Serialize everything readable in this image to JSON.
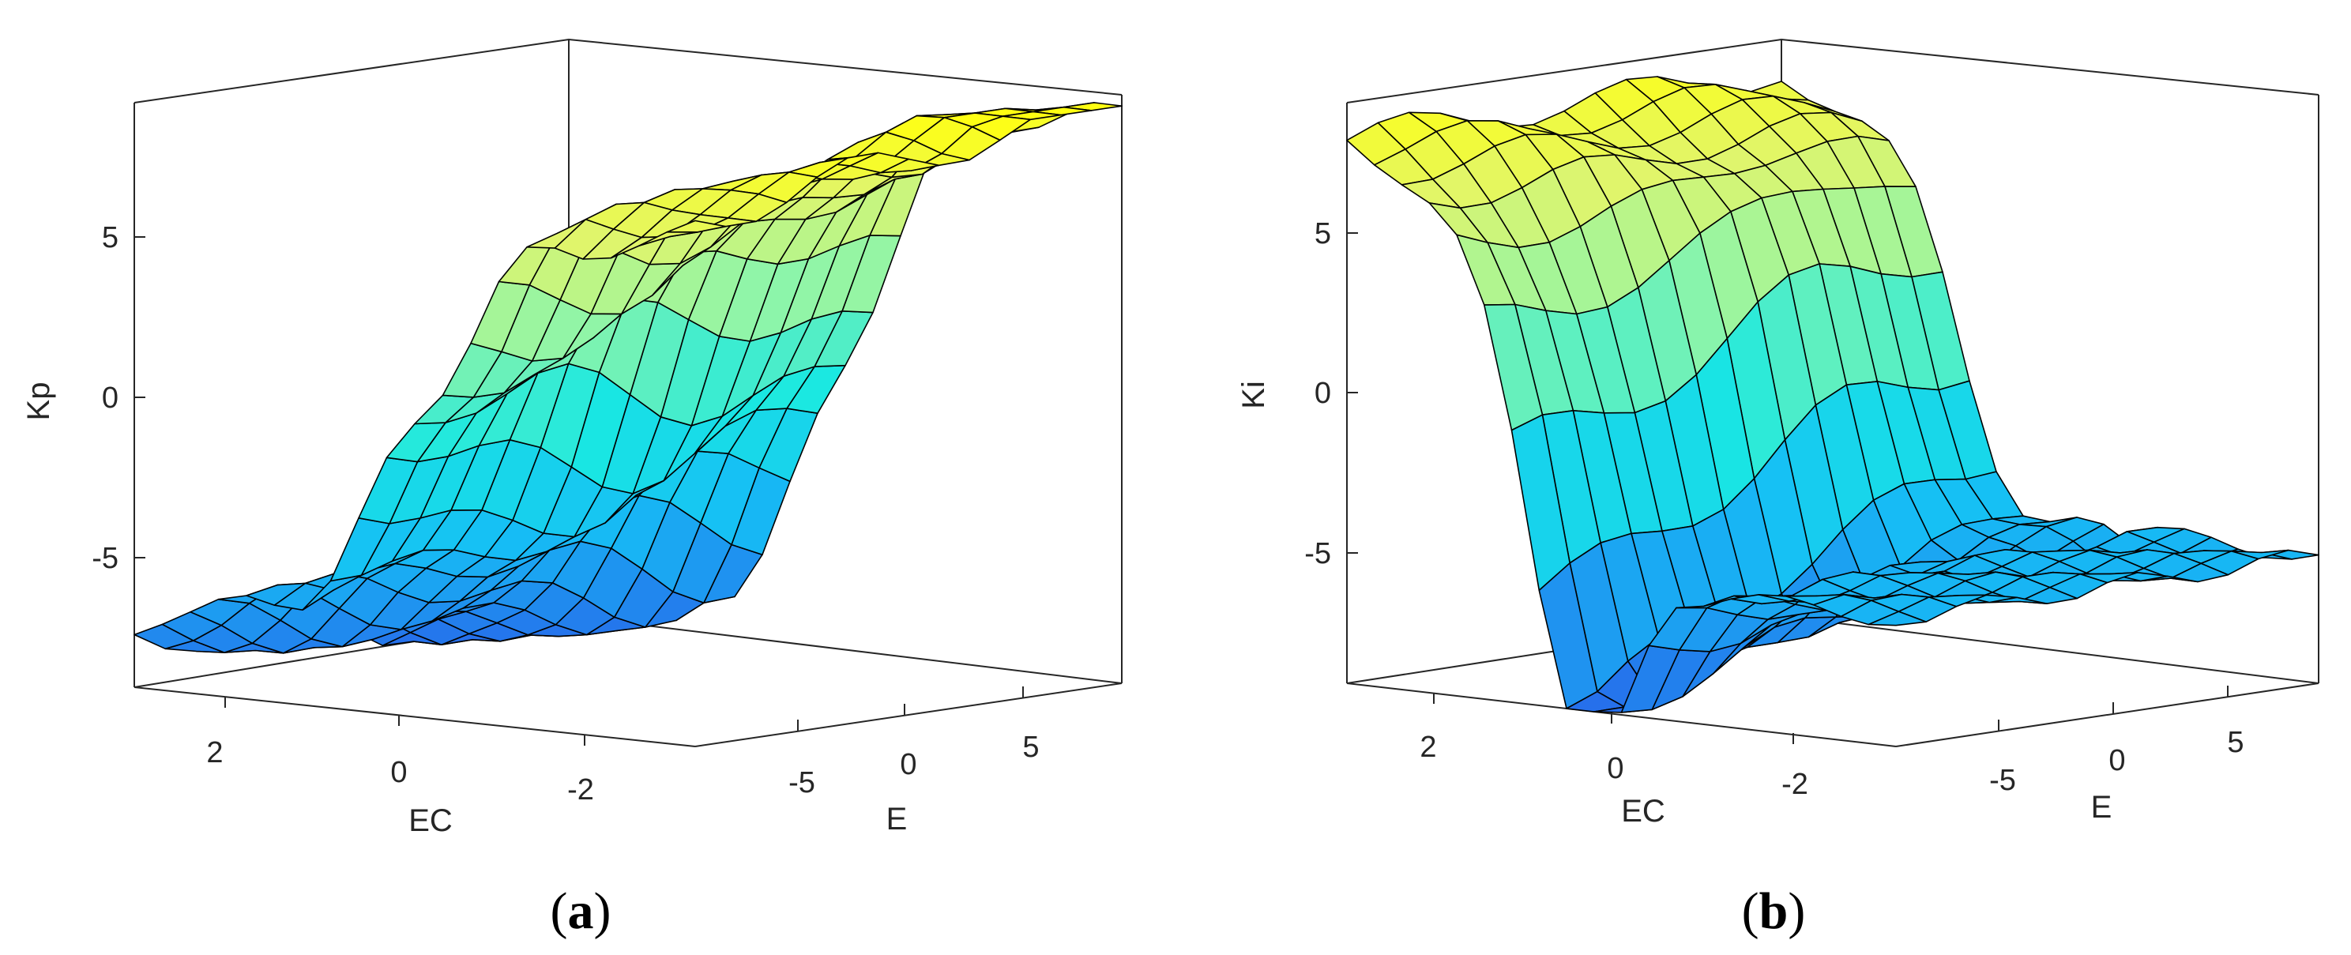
{
  "chart_data": [
    {
      "panel_label": "a",
      "type": "surface",
      "zlabel": "Kp",
      "xlabel": "E",
      "ylabel": "EC",
      "x_range": [
        -9,
        9
      ],
      "y_range": [
        -3,
        3
      ],
      "z_range": [
        -9,
        9
      ],
      "x_ticks": [
        -5,
        0,
        5
      ],
      "y_ticks": [
        2,
        0,
        -2
      ],
      "z_ticks": [
        5,
        0,
        -5
      ],
      "grid": false,
      "colormap": [
        "#2f7bf0",
        "#16c6f5",
        "#19e8e2",
        "#8ff5a8",
        "#e0f56c",
        "#ffff12"
      ],
      "surface_description": "Kp rises monotonically with E (from about -9 to +9), with a wavy shoulder near E = 0",
      "samples": {
        "E": [
          -9,
          -5,
          0,
          5,
          9
        ],
        "Kp_at_EC_-2": [
          -5,
          -4,
          0,
          5,
          6
        ],
        "Kp_at_EC_0": [
          -7,
          -5,
          0,
          5,
          7
        ],
        "Kp_at_EC_2": [
          -9,
          -6,
          1,
          6,
          9
        ]
      }
    },
    {
      "panel_label": "b",
      "type": "surface",
      "zlabel": "Ki",
      "xlabel": "E",
      "ylabel": "EC",
      "x_range": [
        -9,
        9
      ],
      "y_range": [
        -3,
        3
      ],
      "z_range": [
        -9,
        9
      ],
      "x_ticks": [
        -5,
        0,
        5
      ],
      "y_ticks": [
        2,
        0,
        -2
      ],
      "z_ticks": [
        5,
        0,
        -5
      ],
      "grid": false,
      "colormap": [
        "#2f7bf0",
        "#16c6f5",
        "#19e8e2",
        "#8ff5a8",
        "#e0f56c",
        "#ffff12"
      ],
      "surface_description": "Ki is high for negative E, dips to a minimum near E = -3..0, then levels off around -5 for positive E",
      "samples": {
        "E": [
          -9,
          -5,
          0,
          5,
          9
        ],
        "Ki_at_EC_-2": [
          6,
          2,
          -4,
          -5,
          -5
        ],
        "Ki_at_EC_0": [
          8,
          0,
          -8,
          -5,
          -5
        ],
        "Ki_at_EC_2": [
          9,
          -2,
          -9,
          -6,
          -5
        ]
      }
    }
  ]
}
